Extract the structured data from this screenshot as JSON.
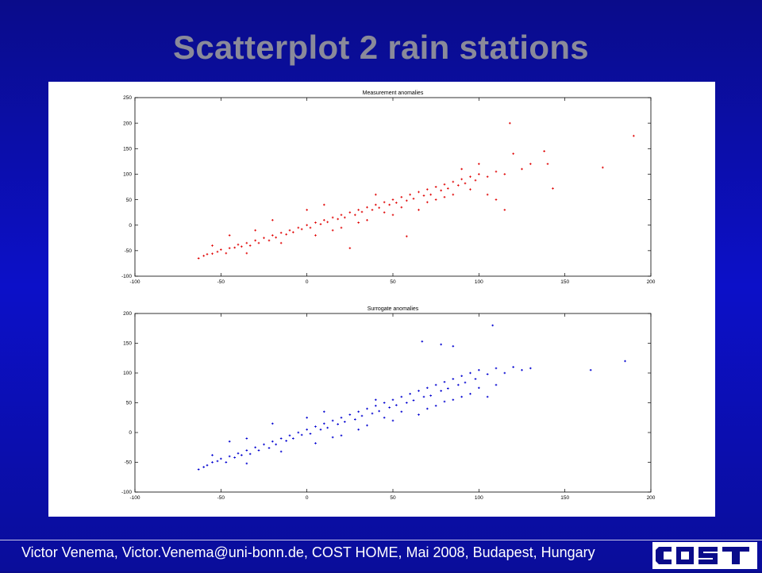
{
  "slide": {
    "title": "Scatterplot 2 rain stations",
    "footer": "Victor Venema, Victor.Venema@uni-bonn.de, COST HOME, Mai 2008, Budapest, Hungary",
    "logo_text": "cost",
    "background_color": "#0c10c8",
    "title_color": "#8a8a9a"
  },
  "chart_data": [
    {
      "type": "scatter",
      "title": "Measurement anomalies",
      "xlabel": "",
      "ylabel": "",
      "xlim": [
        -100,
        200
      ],
      "ylim": [
        -100,
        250
      ],
      "xticks": [
        -100,
        -50,
        0,
        50,
        100,
        150,
        200
      ],
      "yticks": [
        -100,
        -50,
        0,
        50,
        100,
        150,
        200,
        250
      ],
      "grid": false,
      "marker_color": "#e00000",
      "series": [
        {
          "points": [
            [
              -63,
              -65
            ],
            [
              -60,
              -60
            ],
            [
              -58,
              -57
            ],
            [
              -55,
              -56
            ],
            [
              -52,
              -52
            ],
            [
              -50,
              -48
            ],
            [
              -47,
              -55
            ],
            [
              -45,
              -45
            ],
            [
              -42,
              -44
            ],
            [
              -40,
              -38
            ],
            [
              -38,
              -42
            ],
            [
              -35,
              -35
            ],
            [
              -33,
              -40
            ],
            [
              -30,
              -30
            ],
            [
              -28,
              -35
            ],
            [
              -25,
              -25
            ],
            [
              -22,
              -30
            ],
            [
              -20,
              -20
            ],
            [
              -18,
              -24
            ],
            [
              -15,
              -15
            ],
            [
              -12,
              -18
            ],
            [
              -10,
              -10
            ],
            [
              -8,
              -14
            ],
            [
              -5,
              -5
            ],
            [
              -3,
              -8
            ],
            [
              0,
              0
            ],
            [
              2,
              -5
            ],
            [
              5,
              5
            ],
            [
              8,
              2
            ],
            [
              10,
              10
            ],
            [
              12,
              6
            ],
            [
              15,
              15
            ],
            [
              18,
              12
            ],
            [
              20,
              20
            ],
            [
              22,
              15
            ],
            [
              25,
              25
            ],
            [
              28,
              20
            ],
            [
              30,
              30
            ],
            [
              32,
              26
            ],
            [
              35,
              35
            ],
            [
              38,
              30
            ],
            [
              40,
              40
            ],
            [
              42,
              34
            ],
            [
              45,
              45
            ],
            [
              48,
              40
            ],
            [
              50,
              50
            ],
            [
              52,
              44
            ],
            [
              55,
              55
            ],
            [
              58,
              48
            ],
            [
              60,
              60
            ],
            [
              62,
              52
            ],
            [
              65,
              65
            ],
            [
              68,
              58
            ],
            [
              70,
              70
            ],
            [
              72,
              60
            ],
            [
              75,
              75
            ],
            [
              78,
              68
            ],
            [
              80,
              80
            ],
            [
              82,
              72
            ],
            [
              85,
              85
            ],
            [
              88,
              78
            ],
            [
              90,
              90
            ],
            [
              92,
              82
            ],
            [
              95,
              95
            ],
            [
              98,
              88
            ],
            [
              100,
              100
            ],
            [
              105,
              95
            ],
            [
              110,
              105
            ],
            [
              115,
              100
            ],
            [
              118,
              200
            ],
            [
              120,
              140
            ],
            [
              125,
              110
            ],
            [
              130,
              120
            ],
            [
              138,
              145
            ],
            [
              140,
              120
            ],
            [
              143,
              72
            ],
            [
              172,
              113
            ],
            [
              190,
              175
            ],
            [
              115,
              30
            ],
            [
              110,
              50
            ],
            [
              58,
              -22
            ],
            [
              25,
              -45
            ],
            [
              -30,
              -10
            ],
            [
              -45,
              -20
            ],
            [
              -20,
              10
            ],
            [
              0,
              30
            ],
            [
              10,
              40
            ],
            [
              20,
              -5
            ],
            [
              30,
              5
            ],
            [
              40,
              60
            ],
            [
              50,
              20
            ],
            [
              65,
              30
            ],
            [
              75,
              50
            ],
            [
              85,
              60
            ],
            [
              95,
              70
            ],
            [
              105,
              60
            ],
            [
              -55,
              -40
            ],
            [
              -35,
              -55
            ],
            [
              -15,
              -35
            ],
            [
              5,
              -20
            ],
            [
              15,
              -10
            ],
            [
              35,
              10
            ],
            [
              45,
              25
            ],
            [
              55,
              35
            ],
            [
              70,
              45
            ],
            [
              80,
              55
            ],
            [
              90,
              110
            ],
            [
              100,
              120
            ]
          ]
        }
      ]
    },
    {
      "type": "scatter",
      "title": "Surrogate anomalies",
      "xlabel": "",
      "ylabel": "",
      "xlim": [
        -100,
        200
      ],
      "ylim": [
        -100,
        200
      ],
      "xticks": [
        -100,
        -50,
        0,
        50,
        100,
        150,
        200
      ],
      "yticks": [
        -100,
        -50,
        0,
        50,
        100,
        150,
        200
      ],
      "grid": false,
      "marker_color": "#0000d0",
      "series": [
        {
          "points": [
            [
              -63,
              -62
            ],
            [
              -60,
              -58
            ],
            [
              -58,
              -55
            ],
            [
              -55,
              -50
            ],
            [
              -52,
              -48
            ],
            [
              -50,
              -44
            ],
            [
              -47,
              -50
            ],
            [
              -45,
              -40
            ],
            [
              -42,
              -42
            ],
            [
              -40,
              -35
            ],
            [
              -38,
              -38
            ],
            [
              -35,
              -30
            ],
            [
              -33,
              -36
            ],
            [
              -30,
              -25
            ],
            [
              -28,
              -30
            ],
            [
              -25,
              -20
            ],
            [
              -22,
              -26
            ],
            [
              -20,
              -15
            ],
            [
              -18,
              -20
            ],
            [
              -15,
              -10
            ],
            [
              -12,
              -14
            ],
            [
              -10,
              -5
            ],
            [
              -8,
              -10
            ],
            [
              -5,
              0
            ],
            [
              -3,
              -4
            ],
            [
              0,
              5
            ],
            [
              2,
              -2
            ],
            [
              5,
              10
            ],
            [
              8,
              5
            ],
            [
              10,
              15
            ],
            [
              12,
              8
            ],
            [
              15,
              20
            ],
            [
              18,
              14
            ],
            [
              20,
              25
            ],
            [
              22,
              18
            ],
            [
              25,
              30
            ],
            [
              28,
              22
            ],
            [
              30,
              35
            ],
            [
              32,
              28
            ],
            [
              35,
              40
            ],
            [
              38,
              32
            ],
            [
              40,
              45
            ],
            [
              42,
              36
            ],
            [
              45,
              50
            ],
            [
              48,
              42
            ],
            [
              50,
              55
            ],
            [
              52,
              46
            ],
            [
              55,
              60
            ],
            [
              58,
              50
            ],
            [
              60,
              65
            ],
            [
              62,
              54
            ],
            [
              65,
              70
            ],
            [
              68,
              60
            ],
            [
              70,
              75
            ],
            [
              72,
              62
            ],
            [
              75,
              80
            ],
            [
              78,
              70
            ],
            [
              80,
              85
            ],
            [
              82,
              74
            ],
            [
              85,
              90
            ],
            [
              88,
              80
            ],
            [
              90,
              95
            ],
            [
              92,
              84
            ],
            [
              95,
              100
            ],
            [
              98,
              90
            ],
            [
              100,
              105
            ],
            [
              105,
              98
            ],
            [
              108,
              180
            ],
            [
              110,
              108
            ],
            [
              115,
              100
            ],
            [
              120,
              110
            ],
            [
              125,
              105
            ],
            [
              130,
              108
            ],
            [
              165,
              105
            ],
            [
              185,
              120
            ],
            [
              67,
              153
            ],
            [
              78,
              148
            ],
            [
              85,
              145
            ],
            [
              -35,
              -10
            ],
            [
              -45,
              -15
            ],
            [
              -20,
              15
            ],
            [
              0,
              25
            ],
            [
              10,
              35
            ],
            [
              20,
              -5
            ],
            [
              30,
              5
            ],
            [
              40,
              55
            ],
            [
              50,
              20
            ],
            [
              65,
              30
            ],
            [
              75,
              45
            ],
            [
              85,
              55
            ],
            [
              95,
              65
            ],
            [
              105,
              60
            ],
            [
              -55,
              -38
            ],
            [
              -35,
              -52
            ],
            [
              -15,
              -32
            ],
            [
              5,
              -18
            ],
            [
              15,
              -8
            ],
            [
              35,
              12
            ],
            [
              45,
              25
            ],
            [
              55,
              35
            ],
            [
              70,
              40
            ],
            [
              80,
              52
            ],
            [
              90,
              60
            ],
            [
              100,
              75
            ],
            [
              110,
              80
            ]
          ]
        }
      ]
    }
  ]
}
